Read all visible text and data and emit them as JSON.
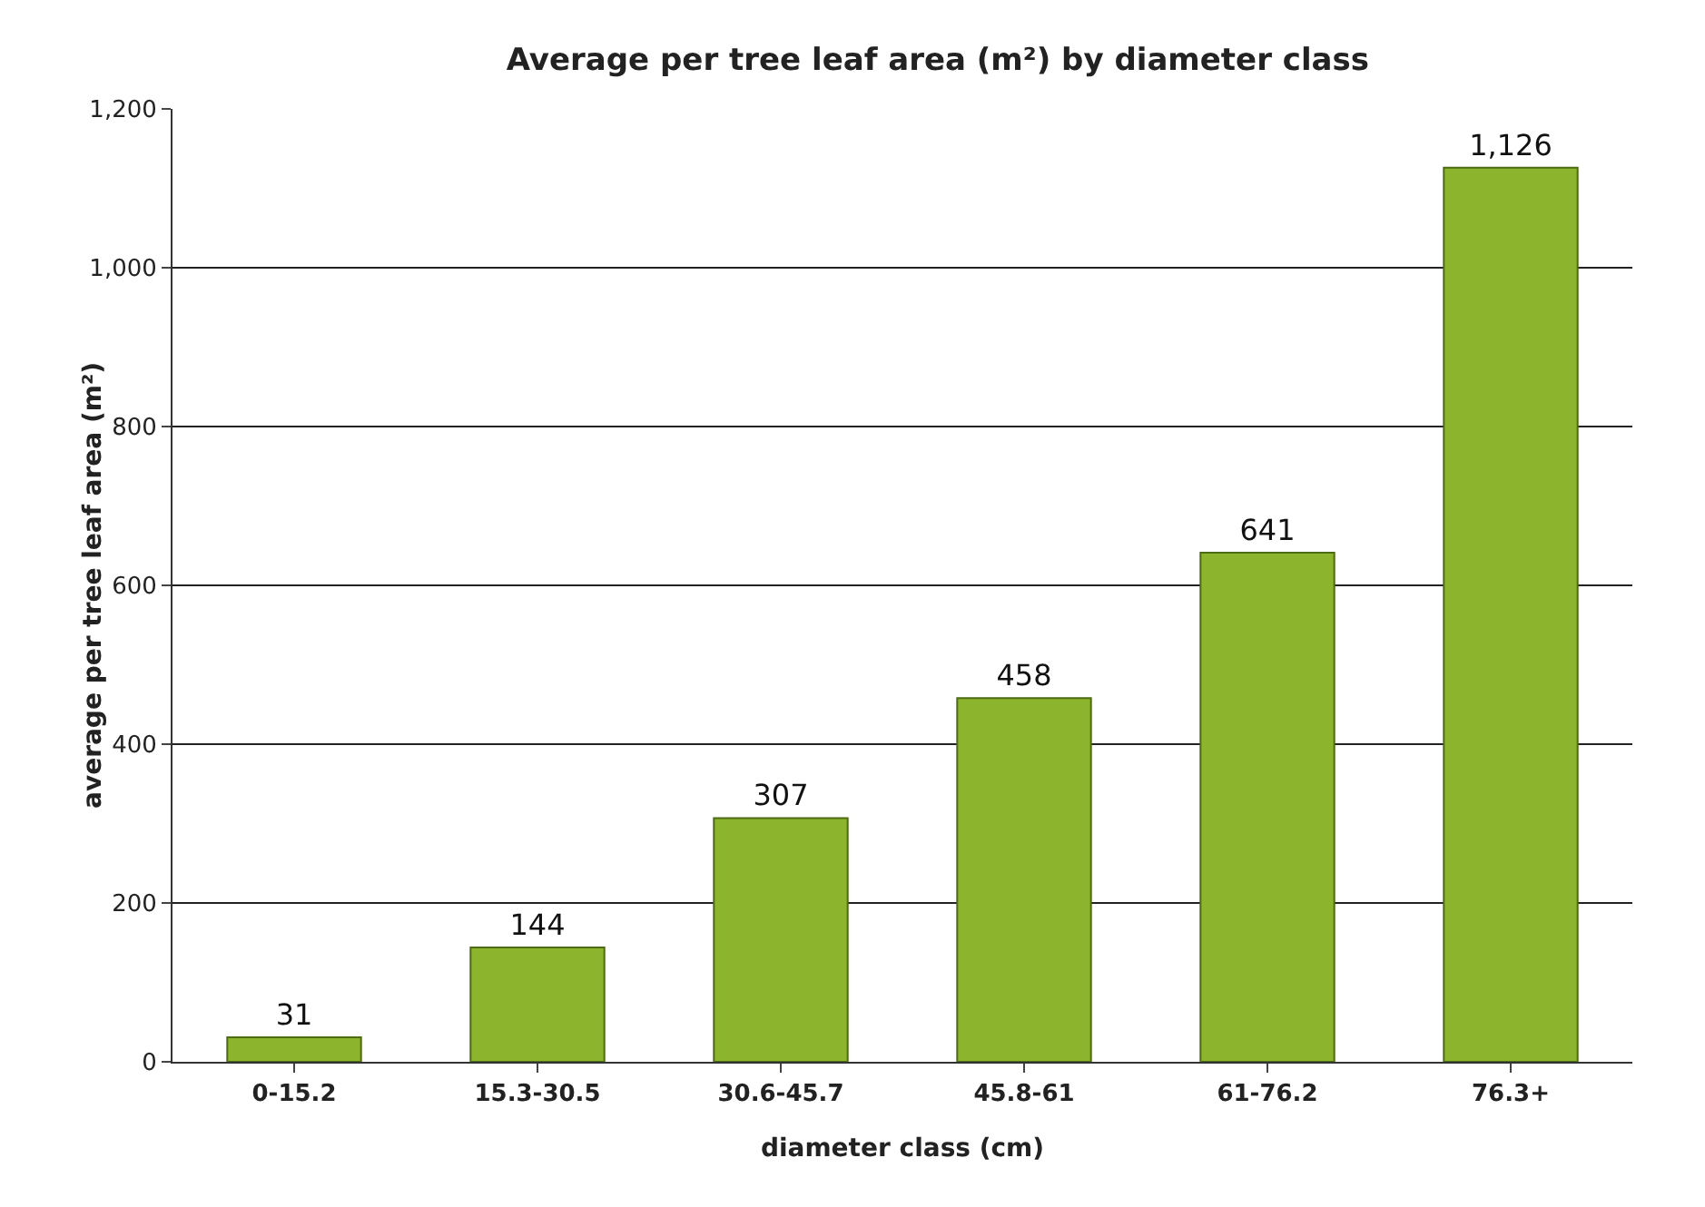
{
  "chart_data": {
    "type": "bar",
    "title": "Average per tree leaf area (m²) by diameter class",
    "xlabel": "diameter class (cm)",
    "ylabel": "average per tree leaf area (m²)",
    "categories": [
      "0-15.2",
      "15.3-30.5",
      "30.6-45.7",
      "45.8-61",
      "61-76.2",
      "76.3+"
    ],
    "values": [
      31,
      144,
      307,
      458,
      641,
      1126
    ],
    "value_labels": [
      "31",
      "144",
      "307",
      "458",
      "641",
      "1,126"
    ],
    "color": "#8cb42c",
    "ylim": [
      0,
      1200
    ],
    "yticks": [
      0,
      200,
      400,
      600,
      800,
      {
        "value": 1000,
        "label": "1,000"
      },
      {
        "value": 1200,
        "label": "1,200"
      }
    ],
    "grid": "y"
  }
}
